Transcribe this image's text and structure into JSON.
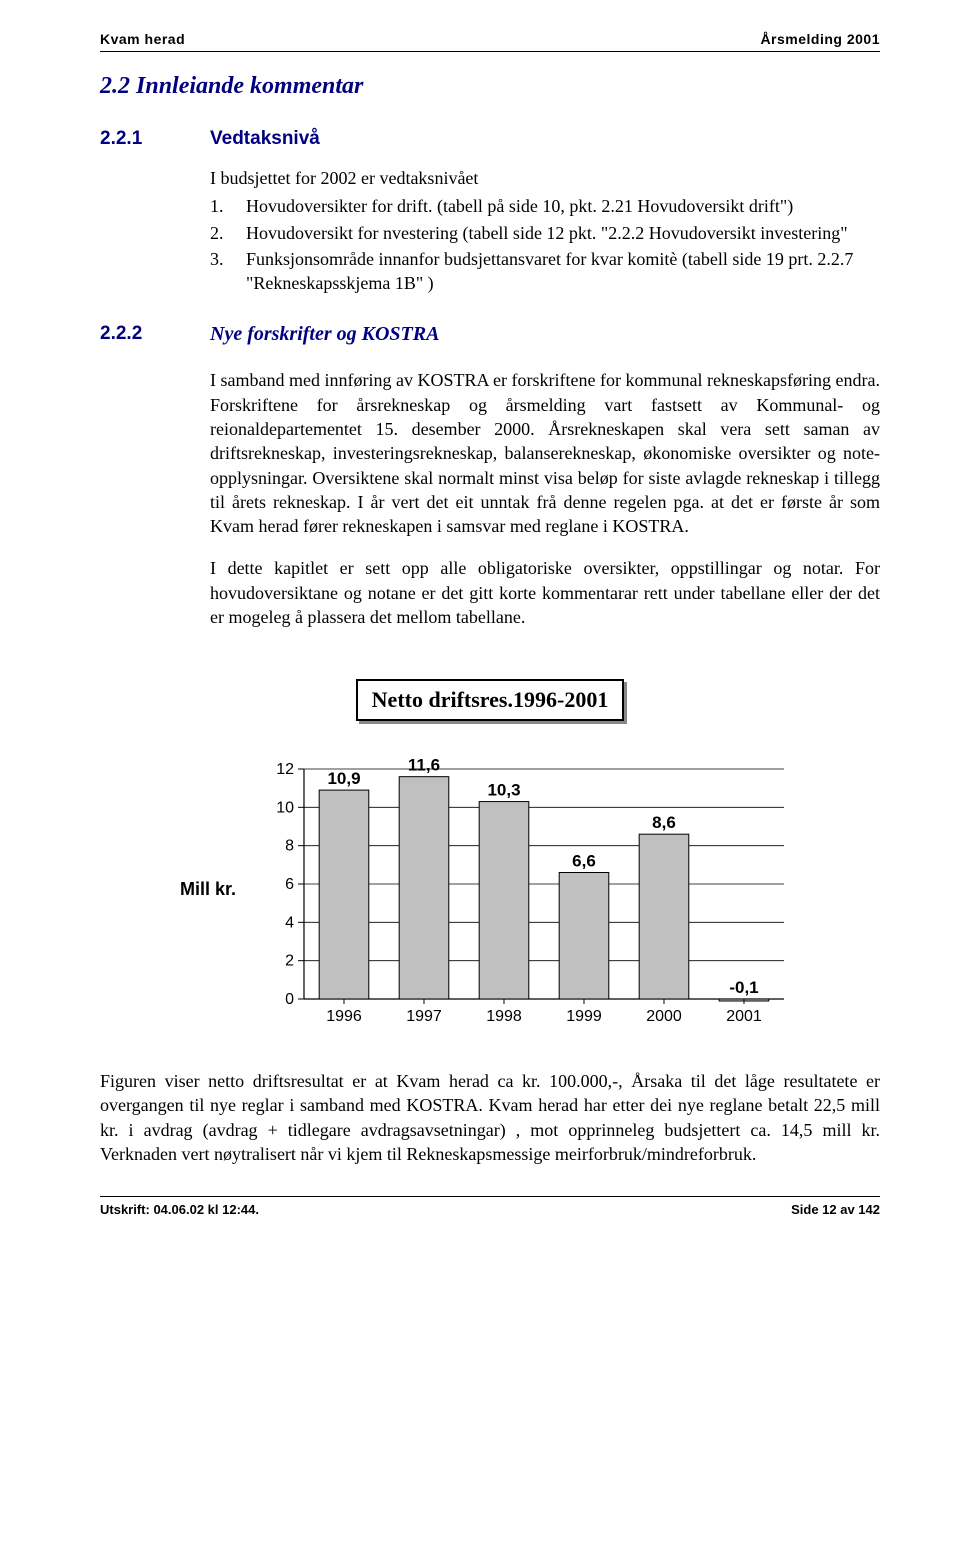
{
  "header": {
    "left": "Kvam herad",
    "right": "Årsmelding 2001"
  },
  "section": {
    "num_title": "2.2 Innleiande kommentar"
  },
  "sub1": {
    "num": "2.2.1",
    "label": "Vedtaksnivå",
    "intro": "I budsjettet for 2002 er vedtaksnivået",
    "items": [
      {
        "n": "1.",
        "t": "Hovudoversikter for drift. (tabell på side 10, pkt. 2.21 Hovudoversikt drift\")"
      },
      {
        "n": "2.",
        "t": "Hovudoversikt for nvestering (tabell side 12 pkt. \"2.2.2 Hovudoversikt investering\""
      },
      {
        "n": "3.",
        "t": "Funksjonsområde innanfor budsjettansvaret for kvar komitè (tabell side 19 prt. 2.2.7 \"Rekneskapsskjema 1B\" )"
      }
    ]
  },
  "sub2": {
    "num": "2.2.2",
    "label": "Nye forskrifter og KOSTRA",
    "p1": "I samband med innføring av KOSTRA er forskriftene for kommunal rekneskapsføring endra. Forskriftene for årsrekneskap og årsmelding vart fastsett av Kommunal- og reionaldepartementet 15. desember 2000. Årsrekneskapen skal vera sett saman av driftsrekneskap, investeringsrekneskap, balanserekneskap, økonomiske oversikter og note-opplysningar. Oversiktene skal normalt minst visa beløp for siste avlagde rekneskap i tillegg til årets rekneskap. I år vert det eit unntak frå denne regelen pga. at det er første år som Kvam herad fører rekneskapen i samsvar med reglane i KOSTRA.",
    "p2": "I dette kapitlet er sett opp alle obligatoriske oversikter, oppstillingar og notar. For hovudoversiktane og notane er det gitt korte kommentarar rett under tabellane eller der det er mogeleg å plassera det mellom tabellane."
  },
  "chart": {
    "type": "bar",
    "title": "Netto driftsres.1996-2001",
    "ylabel": "Mill kr.",
    "categories": [
      "1996",
      "1997",
      "1998",
      "1999",
      "2000",
      "2001"
    ],
    "values": [
      10.9,
      11.6,
      10.3,
      6.6,
      8.6,
      -0.1
    ],
    "value_labels": [
      "10,9",
      "11,6",
      "10,3",
      "6,6",
      "8,6",
      "-0,1"
    ],
    "ylim": [
      0,
      12
    ],
    "ytick_step": 2,
    "yticks": [
      "0",
      "2",
      "4",
      "6",
      "8",
      "10",
      "12"
    ],
    "bar_color": "#c0c0c0",
    "bar_border": "#000000",
    "background_color": "#ffffff",
    "grid_color": "#000000",
    "axis_color": "#000000",
    "label_fontsize": 17,
    "axis_fontsize": 16
  },
  "caption": "Figuren viser netto driftsresultat er at Kvam herad ca kr. 100.000,-, Årsaka til det låge resultatete er overgangen til nye reglar i samband med KOSTRA. Kvam herad har etter dei nye reglane betalt 22,5 mill kr. i avdrag (avdrag + tidlegare avdragsavsetningar) , mot opprinneleg budsjettert ca. 14,5 mill kr. Verknaden vert nøytralisert når vi kjem til Rekneskapsmessige meirforbruk/mindreforbruk.",
  "footer": {
    "left": "Utskrift: 04.06.02 kl 12:44.",
    "right": "Side 12 av 142"
  }
}
